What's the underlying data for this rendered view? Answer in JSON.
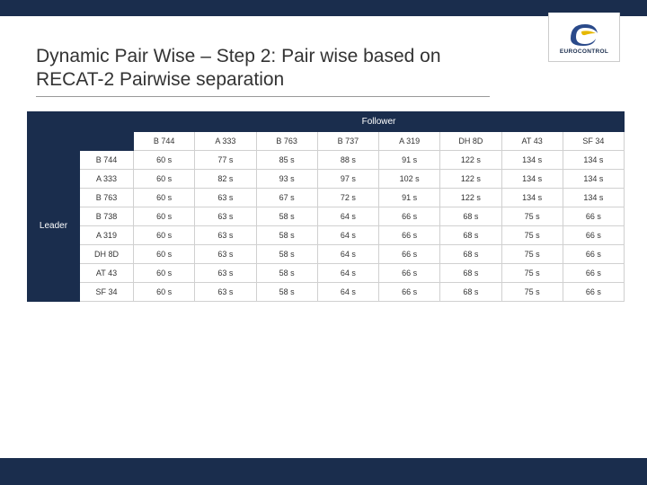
{
  "brand": {
    "name": "EUROCONTROL"
  },
  "title": "Dynamic Pair Wise – Step 2: Pair wise based on RECAT-2 Pairwise separation",
  "labels": {
    "follower": "Follower",
    "leader": "Leader"
  },
  "columns": [
    "B 744",
    "A 333",
    "B 763",
    "B 737",
    "A 319",
    "DH 8D",
    "AT 43",
    "SF 34"
  ],
  "rowHeaders": [
    "B 744",
    "A 333",
    "B 763",
    "B 738",
    "A 319",
    "DH 8D",
    "AT 43",
    "SF 34"
  ],
  "rows": [
    [
      "60 s",
      "77 s",
      "85 s",
      "88 s",
      "91 s",
      "122 s",
      "134 s",
      "134 s"
    ],
    [
      "60 s",
      "82 s",
      "93 s",
      "97 s",
      "102 s",
      "122 s",
      "134 s",
      "134 s"
    ],
    [
      "60 s",
      "63 s",
      "67 s",
      "72 s",
      "91 s",
      "122 s",
      "134 s",
      "134 s"
    ],
    [
      "60 s",
      "63 s",
      "58 s",
      "64 s",
      "66 s",
      "68 s",
      "75 s",
      "66 s"
    ],
    [
      "60 s",
      "63 s",
      "58 s",
      "64 s",
      "66 s",
      "68 s",
      "75 s",
      "66 s"
    ],
    [
      "60 s",
      "63 s",
      "58 s",
      "64 s",
      "66 s",
      "68 s",
      "75 s",
      "66 s"
    ],
    [
      "60 s",
      "63 s",
      "58 s",
      "64 s",
      "66 s",
      "68 s",
      "75 s",
      "66 s"
    ],
    [
      "60 s",
      "63 s",
      "58 s",
      "64 s",
      "66 s",
      "68 s",
      "75 s",
      "66 s"
    ]
  ],
  "colors": {
    "darkblue": "#1a2d4d",
    "border": "#d0d0d0",
    "logo_swirl": "#2a4a8a",
    "logo_accent": "#e6b800"
  }
}
